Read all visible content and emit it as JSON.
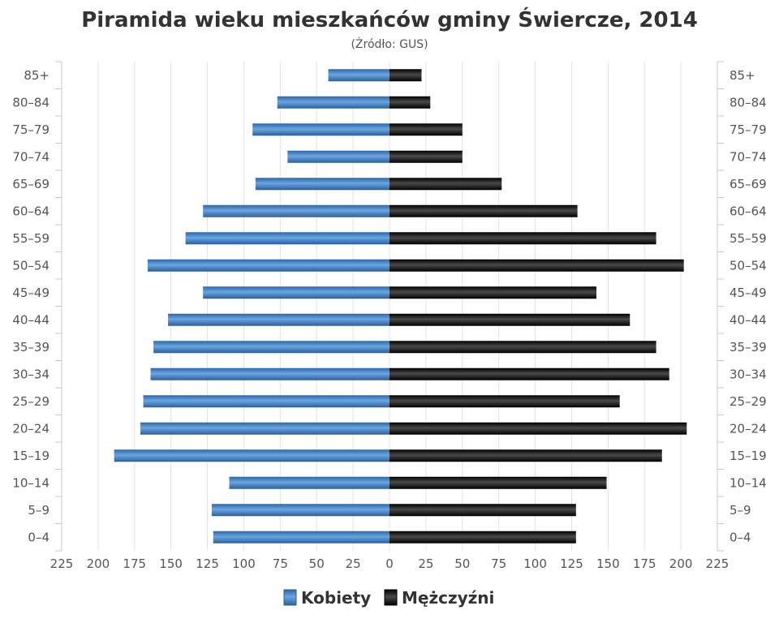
{
  "chart_data": {
    "type": "bar",
    "orientation": "horizontal",
    "title": "Piramida wieku mieszkańców gminy Świercze, 2014",
    "subtitle": "(Źródło: GUS)",
    "categories": [
      "85+",
      "80–84",
      "75–79",
      "70–74",
      "65–69",
      "60–64",
      "55–59",
      "50–54",
      "45–49",
      "40–44",
      "35–39",
      "30–34",
      "25–29",
      "20–24",
      "15–19",
      "10–14",
      "5–9",
      "0–4"
    ],
    "series": [
      {
        "name": "Kobiety",
        "color": "#3d7fc6",
        "values": [
          42,
          77,
          94,
          70,
          92,
          128,
          140,
          166,
          128,
          152,
          162,
          164,
          169,
          171,
          189,
          110,
          122,
          121
        ]
      },
      {
        "name": "Mężczyźni",
        "color": "#1a1a1a",
        "values": [
          22,
          28,
          50,
          50,
          77,
          129,
          183,
          202,
          142,
          165,
          183,
          192,
          158,
          204,
          187,
          149,
          128,
          128
        ]
      }
    ],
    "x_ticks": [
      "225",
      "200",
      "175",
      "150",
      "125",
      "100",
      "75",
      "50",
      "25",
      "0",
      "25",
      "50",
      "75",
      "100",
      "125",
      "150",
      "175",
      "200",
      "225"
    ],
    "xlim": [
      -225,
      225
    ],
    "grid": true,
    "legend_position": "bottom-center"
  }
}
